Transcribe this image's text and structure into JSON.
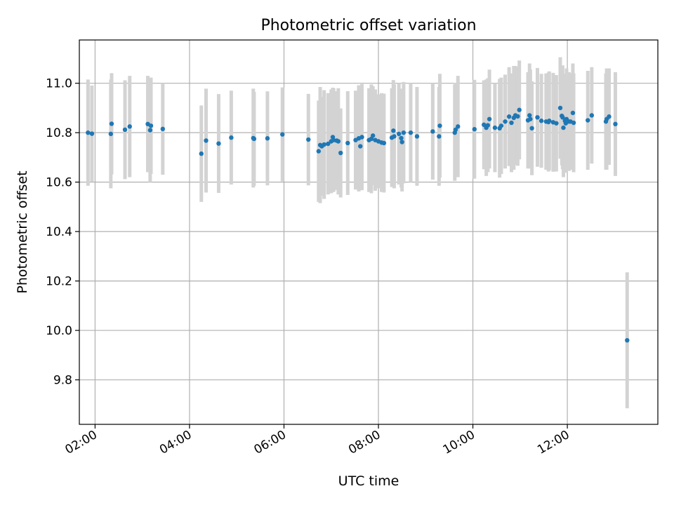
{
  "chart_data": {
    "type": "scatter",
    "title": "Photometric offset variation",
    "xlabel": "UTC time",
    "ylabel": "Photometric offset",
    "xlim": [
      "01:40",
      "13:55"
    ],
    "ylim": [
      9.62,
      11.175
    ],
    "x_ticks": [
      "02:00",
      "04:00",
      "06:00",
      "08:00",
      "10:00",
      "12:00"
    ],
    "y_ticks": [
      "9.8",
      "10.0",
      "10.2",
      "10.4",
      "10.6",
      "10.8",
      "11.0"
    ],
    "grid": true,
    "colors": {
      "points": "#1f77b4",
      "errorbars": "#d3d3d3",
      "grid": "#b0b0b0"
    },
    "series": [
      {
        "x": [
          "01:51",
          "01:56",
          "02:20",
          "02:21",
          "02:38",
          "02:44",
          "03:07",
          "03:10",
          "03:11",
          "03:26",
          "04:15",
          "04:21",
          "04:37",
          "04:53",
          "05:21",
          "05:22",
          "05:39",
          "05:58",
          "06:31",
          "06:44",
          "06:46",
          "06:48",
          "06:51",
          "06:56",
          "07:00",
          "07:02",
          "07:03",
          "07:07",
          "07:09",
          "07:12",
          "07:21",
          "07:31",
          "07:35",
          "07:37",
          "07:39",
          "07:48",
          "07:51",
          "07:53",
          "07:56",
          "08:00",
          "08:04",
          "08:07",
          "08:17",
          "08:19",
          "08:20",
          "08:26",
          "08:29",
          "08:30",
          "08:32",
          "08:41",
          "08:49",
          "09:09",
          "09:17",
          "09:18",
          "09:37",
          "09:38",
          "09:41",
          "10:02",
          "10:14",
          "10:17",
          "10:19",
          "10:21",
          "10:28",
          "10:34",
          "10:36",
          "10:41",
          "10:46",
          "10:49",
          "10:52",
          "10:54",
          "10:57",
          "10:59",
          "11:10",
          "11:12",
          "11:13",
          "11:15",
          "11:22",
          "11:27",
          "11:33",
          "11:36",
          "11:37",
          "11:42",
          "11:46",
          "11:51",
          "11:53",
          "11:54",
          "11:55",
          "11:57",
          "11:58",
          "11:59",
          "12:02",
          "12:04",
          "12:07",
          "12:08",
          "12:26",
          "12:31",
          "12:49",
          "12:50",
          "12:53",
          "13:01",
          "13:16"
        ],
        "y": [
          10.8,
          10.796,
          10.795,
          10.836,
          10.812,
          10.825,
          10.835,
          10.81,
          10.828,
          10.815,
          10.715,
          10.768,
          10.756,
          10.78,
          10.778,
          10.775,
          10.777,
          10.793,
          10.772,
          10.725,
          10.75,
          10.745,
          10.752,
          10.755,
          10.765,
          10.782,
          10.77,
          10.768,
          10.765,
          10.718,
          10.758,
          10.77,
          10.777,
          10.745,
          10.782,
          10.77,
          10.775,
          10.788,
          10.77,
          10.765,
          10.76,
          10.758,
          10.78,
          10.808,
          10.785,
          10.795,
          10.778,
          10.762,
          10.8,
          10.8,
          10.785,
          10.805,
          10.785,
          10.828,
          10.8,
          10.812,
          10.825,
          10.814,
          10.832,
          10.82,
          10.83,
          10.855,
          10.82,
          10.818,
          10.828,
          10.845,
          10.865,
          10.84,
          10.86,
          10.87,
          10.866,
          10.892,
          10.85,
          10.87,
          10.855,
          10.818,
          10.862,
          10.848,
          10.845,
          10.843,
          10.848,
          10.842,
          10.838,
          10.9,
          10.868,
          10.862,
          10.82,
          10.848,
          10.838,
          10.855,
          10.845,
          10.845,
          10.88,
          10.84,
          10.85,
          10.87,
          10.845,
          10.855,
          10.865,
          10.835,
          9.96
        ],
        "err": [
          0.215,
          0.195,
          0.22,
          0.205,
          0.2,
          0.205,
          0.195,
          0.21,
          0.195,
          0.185,
          0.195,
          0.21,
          0.2,
          0.19,
          0.2,
          0.19,
          0.19,
          0.19,
          0.185,
          0.205,
          0.235,
          0.2,
          0.22,
          0.205,
          0.21,
          0.2,
          0.21,
          0.2,
          0.215,
          0.18,
          0.21,
          0.2,
          0.215,
          0.17,
          0.215,
          0.21,
          0.22,
          0.2,
          0.205,
          0.19,
          0.2,
          0.2,
          0.2,
          0.205,
          0.21,
          0.205,
          0.2,
          0.2,
          0.205,
          0.2,
          0.2,
          0.195,
          0.2,
          0.21,
          0.195,
          0.19,
          0.205,
          0.2,
          0.18,
          0.195,
          0.19,
          0.2,
          0.18,
          0.2,
          0.195,
          0.19,
          0.2,
          0.2,
          0.21,
          0.2,
          0.2,
          0.2,
          0.195,
          0.21,
          0.2,
          0.19,
          0.2,
          0.19,
          0.195,
          0.2,
          0.2,
          0.2,
          0.195,
          0.205,
          0.2,
          0.21,
          0.2,
          0.19,
          0.2,
          0.205,
          0.2,
          0.195,
          0.2,
          0.2,
          0.2,
          0.195,
          0.195,
          0.205,
          0.195,
          0.21,
          0.275
        ]
      }
    ]
  }
}
